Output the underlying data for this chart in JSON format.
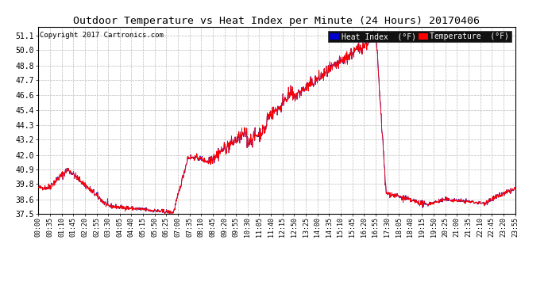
{
  "title": "Outdoor Temperature vs Heat Index per Minute (24 Hours) 20170406",
  "copyright_text": "Copyright 2017 Cartronics.com",
  "legend_heat_index": "Heat Index  (°F)",
  "legend_temperature": "Temperature  (°F)",
  "heat_index_color": "#0000cc",
  "temperature_color": "#ff0000",
  "background_color": "#ffffff",
  "plot_bg_color": "#ffffff",
  "grid_color": "#bbbbbb",
  "ylim": [
    37.5,
    51.8
  ],
  "yticks": [
    37.5,
    38.6,
    39.8,
    40.9,
    42.0,
    43.2,
    44.3,
    45.4,
    46.6,
    47.7,
    48.8,
    50.0,
    51.1
  ],
  "xtick_labels": [
    "00:00",
    "00:35",
    "01:10",
    "01:45",
    "02:20",
    "02:55",
    "03:30",
    "04:05",
    "04:40",
    "05:15",
    "05:50",
    "06:25",
    "07:00",
    "07:35",
    "08:10",
    "08:45",
    "09:20",
    "09:55",
    "10:30",
    "11:05",
    "11:40",
    "12:15",
    "12:50",
    "13:25",
    "14:00",
    "14:35",
    "15:10",
    "15:45",
    "16:20",
    "16:55",
    "17:30",
    "18:05",
    "18:40",
    "19:15",
    "19:50",
    "20:25",
    "21:00",
    "21:35",
    "22:10",
    "22:45",
    "23:20",
    "23:55"
  ],
  "num_points": 1440,
  "figsize": [
    6.9,
    3.75
  ],
  "dpi": 100
}
